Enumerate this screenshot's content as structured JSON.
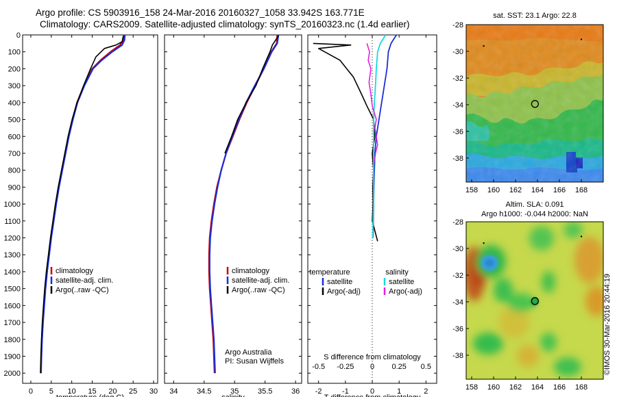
{
  "header": {
    "line1": "Argo profile: CS 5903916_158 24-Mar-2016 20160327_1058 33.942S 163.771E",
    "line2": "Climatology: CARS2009. Satellite-adjusted climatology: synTS_20160323.nc (1.4d earlier)"
  },
  "side_label": "©IMOS 30-Mar-2016 20:44:19",
  "colors": {
    "climatology": "#cc0000",
    "satellite": "#1a2dd6",
    "argo": "#000000",
    "sat_salinity": "#18d8e0",
    "argo_salinity": "#e020e0"
  },
  "chart_data": [
    {
      "type": "line",
      "id": "temperature",
      "xlabel": "temperature (deg C)",
      "ylabel": "",
      "xlim": [
        -2,
        31
      ],
      "ylim": [
        2060,
        0
      ],
      "xticks": [
        0,
        5,
        10,
        15,
        20,
        25,
        30
      ],
      "xtick_labels": [
        "0",
        "5",
        "10",
        "15",
        "20",
        "25",
        "30"
      ],
      "yticks": [
        0,
        100,
        200,
        300,
        400,
        500,
        600,
        700,
        800,
        900,
        1000,
        1100,
        1200,
        1300,
        1400,
        1500,
        1600,
        1700,
        1800,
        1900,
        2000
      ],
      "ytick_labels": [
        "0",
        "100",
        "200",
        "300",
        "400",
        "500",
        "600",
        "700",
        "800",
        "900",
        "1000",
        "1100",
        "1200",
        "1300",
        "1400",
        "1500",
        "1600",
        "1700",
        "1800",
        "1900",
        "2000"
      ],
      "legend": [
        {
          "label": "climatology",
          "color": "#cc0000"
        },
        {
          "label": "satellite-adj. clim.",
          "color": "#1a2dd6"
        },
        {
          "label": "Argo(..raw -QC)",
          "color": "#000000"
        }
      ],
      "series": [
        {
          "name": "climatology",
          "color": "#cc0000",
          "width": 2.2,
          "x": [
            22.8,
            22.6,
            21.8,
            19.5,
            17.0,
            15.0,
            13.0,
            11.3,
            10.2,
            9.2,
            8.4,
            7.6,
            6.8,
            6.1,
            5.5,
            4.9,
            4.4,
            3.9,
            3.5,
            3.2,
            2.9,
            2.7,
            2.55,
            2.45
          ],
          "y": [
            0,
            30,
            60,
            100,
            150,
            200,
            300,
            400,
            500,
            600,
            700,
            800,
            900,
            1000,
            1100,
            1200,
            1300,
            1400,
            1500,
            1600,
            1700,
            1800,
            1900,
            2000
          ]
        },
        {
          "name": "satellite-adj. clim.",
          "color": "#1a2dd6",
          "width": 2.2,
          "x": [
            23.0,
            22.9,
            22.3,
            19.9,
            17.3,
            15.2,
            13.1,
            11.4,
            10.3,
            9.3,
            8.5,
            7.7,
            6.9,
            6.2,
            5.6,
            5.0,
            4.5,
            4.0,
            3.6,
            3.3,
            3.0,
            2.75,
            2.6,
            2.5
          ],
          "y": [
            0,
            30,
            60,
            100,
            150,
            200,
            300,
            400,
            500,
            600,
            700,
            800,
            900,
            1000,
            1100,
            1200,
            1300,
            1400,
            1500,
            1600,
            1700,
            1800,
            1900,
            2000
          ]
        },
        {
          "name": "Argo(..raw -QC)",
          "color": "#000000",
          "width": 1.6,
          "x": [
            22.6,
            22.3,
            20.8,
            18.0,
            15.9,
            14.6,
            12.9,
            11.3,
            10.1,
            9.1,
            8.3,
            7.5,
            6.7,
            6.0,
            5.4,
            4.8,
            4.3,
            3.8,
            3.4,
            3.1,
            2.8,
            2.6,
            2.45,
            2.35
          ],
          "y": [
            5,
            40,
            60,
            80,
            130,
            200,
            300,
            400,
            500,
            600,
            700,
            800,
            900,
            1000,
            1100,
            1200,
            1300,
            1400,
            1500,
            1600,
            1700,
            1800,
            1900,
            2000
          ]
        }
      ]
    },
    {
      "type": "line",
      "id": "salinity",
      "xlabel": "salinity",
      "ylabel": "",
      "xlim": [
        33.85,
        36.1
      ],
      "ylim": [
        2060,
        0
      ],
      "xticks": [
        34,
        34.5,
        35,
        35.5,
        36
      ],
      "xtick_labels": [
        "34",
        "34.5",
        "35",
        "35.5",
        "36"
      ],
      "yticks": [],
      "ytick_labels": [],
      "legend": [
        {
          "label": "climatology",
          "color": "#cc0000"
        },
        {
          "label": "satellite-adj. clim.",
          "color": "#1a2dd6"
        },
        {
          "label": "Argo(..raw -QC)",
          "color": "#000000"
        }
      ],
      "annotation": [
        "Argo Australia",
        "PI: Susan Wijffels"
      ],
      "series": [
        {
          "name": "climatology",
          "color": "#cc0000",
          "width": 2.2,
          "x": [
            35.7,
            35.69,
            35.6,
            35.48,
            35.34,
            35.2,
            35.08,
            34.97,
            34.86,
            34.78,
            34.71,
            34.66,
            34.62,
            34.59,
            34.58,
            34.58,
            34.59,
            34.61,
            34.63,
            34.65,
            34.67
          ],
          "y": [
            0,
            50,
            100,
            200,
            300,
            400,
            500,
            600,
            700,
            800,
            900,
            1000,
            1100,
            1200,
            1300,
            1400,
            1500,
            1600,
            1700,
            1800,
            2000
          ]
        },
        {
          "name": "satellite-adj. clim.",
          "color": "#1a2dd6",
          "width": 2.2,
          "x": [
            35.72,
            35.7,
            35.61,
            35.48,
            35.33,
            35.19,
            35.07,
            34.96,
            34.86,
            34.78,
            34.72,
            34.67,
            34.63,
            34.6,
            34.59,
            34.59,
            34.6,
            34.62,
            34.64,
            34.66,
            34.68
          ],
          "y": [
            0,
            50,
            100,
            200,
            300,
            400,
            500,
            600,
            700,
            800,
            900,
            1000,
            1100,
            1200,
            1300,
            1400,
            1500,
            1600,
            1700,
            1800,
            2000
          ]
        },
        {
          "name": "Argo(..raw -QC)",
          "color": "#000000",
          "width": 1.6,
          "x": [
            35.72,
            35.62,
            35.58,
            35.52,
            35.46,
            35.35,
            35.19,
            35.05,
            34.95,
            34.84
          ],
          "y": [
            5,
            60,
            100,
            150,
            200,
            300,
            400,
            500,
            600,
            700
          ]
        }
      ]
    },
    {
      "type": "line",
      "id": "difference",
      "xlabel": "T difference from climatology",
      "top_axis_label": "S difference from climatology",
      "xlim": [
        -2.4,
        2.4
      ],
      "ylim": [
        2060,
        0
      ],
      "xticks": [
        -2,
        -1,
        0,
        1,
        2
      ],
      "xtick_labels": [
        "-2",
        "-1",
        "0",
        "1",
        "2"
      ],
      "s_ticks": [
        -0.5,
        -0.25,
        0,
        0.25,
        0.5
      ],
      "s_tick_labels": [
        "-0.5",
        "-0.25",
        "0",
        "0.25",
        "0.5"
      ],
      "zero_line": "dotted",
      "legend_titles": [
        "temperature",
        "salinity"
      ],
      "legend": [
        {
          "label": "satellite",
          "color": "#1a2dd6",
          "group": "temperature"
        },
        {
          "label": "Argo(-adj)",
          "color": "#000000",
          "group": "temperature"
        },
        {
          "label": "satellite",
          "color": "#18d8e0",
          "group": "salinity"
        },
        {
          "label": "Argo(-adj)",
          "color": "#e020e0",
          "group": "salinity"
        }
      ],
      "series": [
        {
          "name": "temperature satellite",
          "color": "#1a2dd6",
          "width": 1.8,
          "x": [
            0.9,
            0.7,
            0.6,
            0.55,
            0.45,
            0.35,
            0.25,
            0.15,
            0.1,
            0.08,
            0.06,
            0.05,
            0.04,
            0.03
          ],
          "y": [
            0,
            50,
            100,
            200,
            300,
            400,
            500,
            600,
            700,
            800,
            900,
            1000,
            1100,
            1200
          ]
        },
        {
          "name": "temperature Argo(-adj)",
          "color": "#000000",
          "width": 1.6,
          "x": [
            -2.2,
            -0.8,
            -2.0,
            -1.2,
            -0.7,
            -0.4,
            -0.2,
            0.05,
            0.1,
            0.0,
            0.05,
            0.02,
            0.03,
            0.0,
            0.2
          ],
          "y": [
            50,
            60,
            80,
            150,
            250,
            350,
            420,
            500,
            600,
            700,
            800,
            900,
            1000,
            1100,
            1220
          ]
        },
        {
          "name": "salinity satellite",
          "color": "#18d8e0",
          "width": 1.8,
          "x": [
            0.5,
            0.3,
            0.2,
            0.15,
            0.12,
            0.08,
            0.05,
            0.05,
            0.05,
            0.05,
            0.03,
            0.02
          ],
          "y": [
            0,
            50,
            100,
            200,
            300,
            400,
            500,
            600,
            800,
            1000,
            1100,
            1200
          ]
        },
        {
          "name": "salinity Argo(-adj)",
          "color": "#e020e0",
          "width": 1.6,
          "x": [
            -0.2,
            -0.1,
            -0.15,
            -0.05,
            -0.12,
            -0.05,
            0.0,
            0.15,
            0.1,
            0.2,
            0.12,
            0.08
          ],
          "y": [
            50,
            100,
            150,
            200,
            280,
            350,
            420,
            500,
            550,
            650,
            700,
            750
          ]
        }
      ]
    },
    {
      "type": "heatmap",
      "id": "sst_map",
      "title": "sat. SST: 23.1  Argo: 22.8",
      "xlim": [
        157.5,
        170.0
      ],
      "ylim": [
        -39.8,
        -28.0
      ],
      "xticks": [
        158,
        160,
        162,
        164,
        166,
        168
      ],
      "xtick_labels": [
        "158",
        "160",
        "162",
        "164",
        "166",
        "168"
      ],
      "yticks": [
        -28,
        -30,
        -32,
        -34,
        -36,
        -38
      ],
      "ytick_labels": [
        "-28",
        "-30",
        "-32",
        "-34",
        "-36",
        "-38"
      ],
      "marker": {
        "lon": 163.771,
        "lat": -33.942
      }
    },
    {
      "type": "heatmap",
      "id": "sla_map",
      "title": "Altim. SLA: 0.091",
      "subtitle": "Argo h1000: -0.044 h2000: NaN",
      "xlim": [
        157.5,
        170.0
      ],
      "ylim": [
        -39.8,
        -28.0
      ],
      "xticks": [
        158,
        160,
        162,
        164,
        166,
        168
      ],
      "xtick_labels": [
        "158",
        "160",
        "162",
        "164",
        "166",
        "168"
      ],
      "yticks": [
        -28,
        -30,
        -32,
        -34,
        -36,
        -38
      ],
      "ytick_labels": [
        "-28",
        "-30",
        "-32",
        "-34",
        "-36",
        "-38"
      ],
      "marker": {
        "lon": 163.771,
        "lat": -33.942
      }
    }
  ]
}
